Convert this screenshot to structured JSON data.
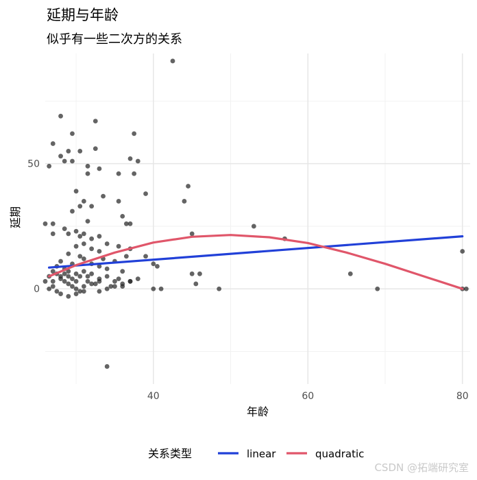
{
  "chart_data": {
    "type": "scatter",
    "title": "延期与年龄",
    "subtitle": "似乎有一些二次方的关系",
    "xlabel": "年龄",
    "ylabel": "延期",
    "xlim": [
      26,
      81
    ],
    "ylim": [
      -38,
      94
    ],
    "x_ticks": [
      40,
      60,
      80
    ],
    "y_ticks": [
      0,
      50
    ],
    "x_tick_labels": [
      "40",
      "60",
      "80"
    ],
    "y_tick_labels": [
      "0",
      "50"
    ],
    "x_minor": [
      30,
      50,
      70
    ],
    "y_minor": [
      -25,
      25,
      75
    ],
    "grid": true,
    "legend_position": "bottom",
    "legend_title": "关系类型",
    "points": [
      [
        42.5,
        91
      ],
      [
        28,
        69
      ],
      [
        32.5,
        67
      ],
      [
        29.5,
        62
      ],
      [
        37.5,
        62
      ],
      [
        27,
        58
      ],
      [
        29,
        55
      ],
      [
        32.5,
        56
      ],
      [
        28,
        53
      ],
      [
        30.5,
        55
      ],
      [
        29.5,
        51
      ],
      [
        26.5,
        49
      ],
      [
        28.5,
        51
      ],
      [
        31.5,
        49
      ],
      [
        33,
        48
      ],
      [
        37,
        52
      ],
      [
        38,
        51
      ],
      [
        37.5,
        46
      ],
      [
        31.5,
        46
      ],
      [
        35.5,
        46
      ],
      [
        44.5,
        41
      ],
      [
        30,
        39
      ],
      [
        33.5,
        37
      ],
      [
        39,
        38
      ],
      [
        35.5,
        35
      ],
      [
        44,
        35
      ],
      [
        31,
        35
      ],
      [
        32,
        33
      ],
      [
        30.5,
        33
      ],
      [
        29.5,
        31
      ],
      [
        36,
        29
      ],
      [
        31.5,
        27
      ],
      [
        26,
        26
      ],
      [
        27,
        26
      ],
      [
        36.5,
        26
      ],
      [
        37,
        26
      ],
      [
        28.5,
        24
      ],
      [
        29,
        22
      ],
      [
        30,
        23
      ],
      [
        30.5,
        21
      ],
      [
        31,
        22
      ],
      [
        33,
        21
      ],
      [
        27,
        22
      ],
      [
        32,
        20
      ],
      [
        45,
        22
      ],
      [
        53,
        25
      ],
      [
        57,
        20
      ],
      [
        35.5,
        17
      ],
      [
        37,
        16
      ],
      [
        30,
        17
      ],
      [
        31,
        18
      ],
      [
        32,
        16
      ],
      [
        33,
        15
      ],
      [
        34,
        18
      ],
      [
        29,
        14
      ],
      [
        30.5,
        13
      ],
      [
        31,
        12
      ],
      [
        33.5,
        12
      ],
      [
        35,
        11
      ],
      [
        36.5,
        13
      ],
      [
        32,
        10
      ],
      [
        28,
        11
      ],
      [
        29.5,
        10
      ],
      [
        33,
        9
      ],
      [
        34,
        8
      ],
      [
        36,
        7
      ],
      [
        28.5,
        8
      ],
      [
        30,
        6
      ],
      [
        31.5,
        5
      ],
      [
        33,
        4
      ],
      [
        34,
        5
      ],
      [
        35.5,
        4
      ],
      [
        37,
        3
      ],
      [
        27.5,
        6
      ],
      [
        28,
        4
      ],
      [
        28.5,
        3
      ],
      [
        29,
        2
      ],
      [
        29.5,
        1
      ],
      [
        30,
        0
      ],
      [
        30.5,
        -1
      ],
      [
        31,
        1
      ],
      [
        32,
        2
      ],
      [
        33,
        -1
      ],
      [
        34,
        0
      ],
      [
        35,
        1
      ],
      [
        36,
        2
      ],
      [
        37,
        3
      ],
      [
        38,
        4
      ],
      [
        26.5,
        0
      ],
      [
        27,
        1
      ],
      [
        27.5,
        -1
      ],
      [
        28,
        -2
      ],
      [
        29,
        -3
      ],
      [
        30,
        -2
      ],
      [
        31,
        -1
      ],
      [
        40,
        10
      ],
      [
        40.5,
        9
      ],
      [
        39,
        13
      ],
      [
        40,
        0
      ],
      [
        41,
        0
      ],
      [
        45,
        6
      ],
      [
        46,
        6
      ],
      [
        45.5,
        2
      ],
      [
        48.5,
        0
      ],
      [
        65.5,
        6
      ],
      [
        69,
        0
      ],
      [
        80,
        15
      ],
      [
        80,
        0
      ],
      [
        80.5,
        0
      ],
      [
        34,
        -31
      ],
      [
        26,
        3
      ],
      [
        26.5,
        5
      ],
      [
        27,
        7
      ],
      [
        27.5,
        9
      ],
      [
        28,
        5
      ],
      [
        28.5,
        6
      ],
      [
        29,
        7
      ],
      [
        29.5,
        4
      ],
      [
        30,
        3
      ],
      [
        30.5,
        5
      ],
      [
        31,
        7
      ],
      [
        31.5,
        3
      ],
      [
        32,
        6
      ],
      [
        32.5,
        2
      ],
      [
        33,
        3
      ],
      [
        34.5,
        1
      ],
      [
        35,
        3
      ],
      [
        36,
        1
      ],
      [
        27,
        3
      ],
      [
        29,
        5
      ]
    ],
    "series": [
      {
        "name": "linear",
        "color": "#2140d8",
        "x": [
          26.5,
          80
        ],
        "y": [
          8.5,
          21
        ]
      },
      {
        "name": "quadratic",
        "color": "#e0566a",
        "x": [
          26.5,
          30,
          35,
          40,
          45,
          50,
          55,
          60,
          65,
          70,
          75,
          80
        ],
        "y": [
          5,
          9.5,
          14.5,
          18.5,
          20.8,
          21.5,
          20.6,
          18.3,
          14.5,
          10,
          5,
          0
        ]
      }
    ],
    "point_color": "#222222",
    "watermark": "CSDN @拓端研究室"
  }
}
